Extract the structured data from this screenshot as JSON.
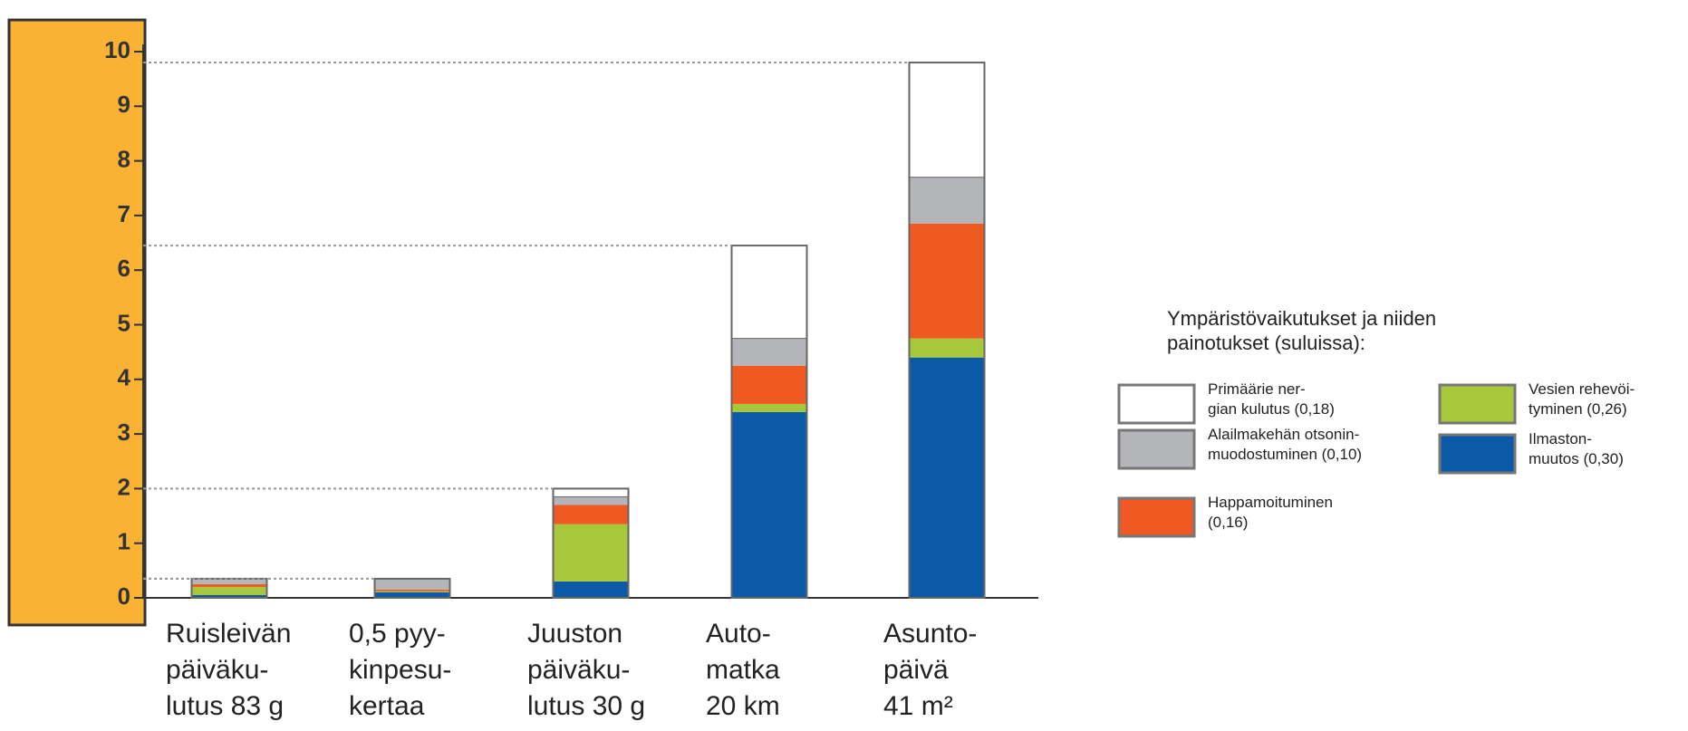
{
  "chart_data": {
    "type": "stacked_bar",
    "legend_title": "Ympäristövaikutukset ja niiden\n painotukset (suluissa):",
    "categories": [
      "Ruisleivän\npäiväku-\nlutus 83 g",
      "0,5 pyy-\nkinpesu-\nkertaa",
      "Juuston\npäiväku-\nlutus 30 g",
      "Auto-\nmatka\n20 km",
      "Asunto-\npäivä\n41 m²"
    ],
    "series": [
      {
        "name": "Ilmaston-\nmuutos (0,30)",
        "color": "#0a5aa8",
        "values": [
          0.05,
          0.1,
          0.3,
          3.4,
          4.4
        ]
      },
      {
        "name": "Vesien rehevöi-\ntyminen (0,26)",
        "color": "#a6c83a",
        "values": [
          0.15,
          0.02,
          1.05,
          0.15,
          0.35
        ]
      },
      {
        "name": "Happamoituminen\n(0,16)",
        "color": "#ee5a22",
        "values": [
          0.05,
          0.03,
          0.35,
          0.7,
          2.1
        ]
      },
      {
        "name": "Alailmakehän otsonin-\nmuodostuminen (0,10)",
        "color": "#b4b5b8",
        "values": [
          0.1,
          0.2,
          0.15,
          0.5,
          0.85
        ]
      },
      {
        "name": "Primäärie ner-\ngian kulutus (0,18)",
        "color": "#ffffff",
        "values": [
          0,
          0,
          0.15,
          1.7,
          2.1
        ]
      }
    ],
    "ylim": [
      0,
      10
    ],
    "yticks": [
      0,
      1,
      2,
      3,
      4,
      5,
      6,
      7,
      8,
      9,
      10
    ]
  }
}
